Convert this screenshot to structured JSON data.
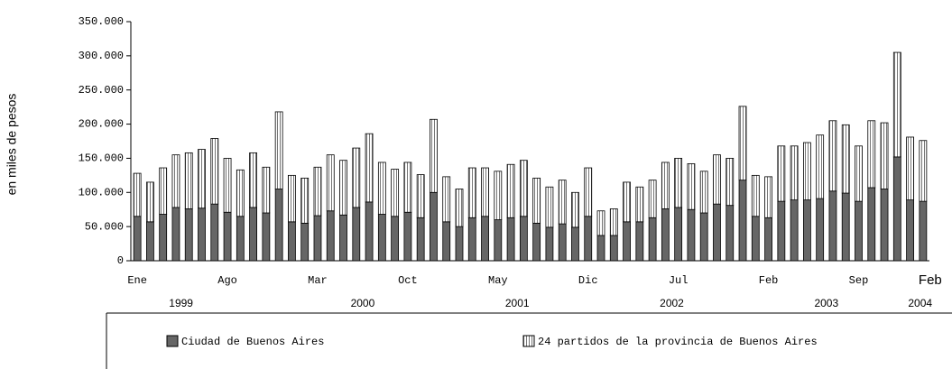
{
  "chart_data": {
    "type": "stacked-bar",
    "y_label": "en miles de pesos",
    "categories": [
      "Ene",
      null,
      null,
      null,
      null,
      null,
      null,
      "Ago",
      null,
      null,
      null,
      null,
      null,
      null,
      "Mar",
      null,
      null,
      null,
      null,
      null,
      null,
      "Oct",
      null,
      null,
      null,
      null,
      null,
      null,
      "May",
      null,
      null,
      null,
      null,
      null,
      null,
      "Dic",
      null,
      null,
      null,
      null,
      null,
      null,
      "Jul",
      null,
      null,
      null,
      null,
      null,
      null,
      "Feb",
      null,
      null,
      null,
      null,
      null,
      null,
      "Sep",
      null,
      null,
      null,
      null,
      "Feb"
    ],
    "years": [
      "1999",
      "2000",
      "2001",
      "2002",
      "2003",
      "2004"
    ],
    "series": [
      {
        "name": "Ciudad de Buenos Aires",
        "color": "#666666",
        "values": [
          65000,
          57000,
          68000,
          78000,
          76000,
          77000,
          83000,
          71000,
          65000,
          78000,
          70000,
          105000,
          57000,
          55000,
          66000,
          73000,
          67000,
          78000,
          86000,
          68000,
          65000,
          71000,
          63000,
          100000,
          57000,
          50000,
          63000,
          65000,
          60000,
          63000,
          65000,
          55000,
          49000,
          54000,
          49000,
          65000,
          37000,
          37000,
          57000,
          57000,
          63000,
          76000,
          78000,
          75000,
          70000,
          83000,
          81000,
          118000,
          65000,
          63000,
          87000,
          89000,
          89000,
          91000,
          102000,
          99000,
          87000,
          107000,
          105000,
          152000,
          89000,
          87000
        ]
      },
      {
        "name": "24 partidos de la provincia de Buenos Aires",
        "color": "#ffffff",
        "values": [
          63000,
          58000,
          68000,
          77000,
          82000,
          86000,
          96000,
          79000,
          68000,
          80000,
          67000,
          113000,
          68000,
          66000,
          71000,
          82000,
          80000,
          87000,
          100000,
          76000,
          69000,
          73000,
          63000,
          107000,
          66000,
          55000,
          73000,
          71000,
          71000,
          78000,
          82000,
          66000,
          59000,
          64000,
          51000,
          71000,
          36000,
          39000,
          58000,
          51000,
          55000,
          68000,
          72000,
          67000,
          61000,
          72000,
          69000,
          108000,
          60000,
          60000,
          81000,
          79000,
          84000,
          93000,
          103000,
          100000,
          81000,
          98000,
          97000,
          153000,
          92000,
          89000
        ]
      }
    ],
    "ylim": [
      0,
      350000
    ],
    "yticks": [
      0,
      {
        "value": 50000,
        "label": "50.000"
      },
      {
        "value": 100000,
        "label": "100.000"
      },
      {
        "value": 150000,
        "label": "150.000"
      },
      {
        "value": 200000,
        "label": "200.000"
      },
      {
        "value": 250000,
        "label": "250.000"
      },
      {
        "value": 300000,
        "label": "300.000"
      },
      {
        "value": 350000,
        "label": "350.000"
      }
    ]
  }
}
